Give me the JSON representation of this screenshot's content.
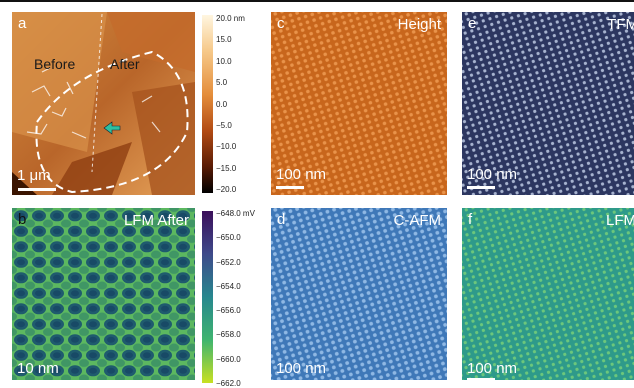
{
  "figure": {
    "panel_a": {
      "label": "a",
      "before_label": "Before",
      "after_label": "After",
      "scale": "1 μm",
      "colorbar_ticks": [
        "20.0 nm",
        "15.0",
        "10.0",
        "5.0",
        "0.0",
        "−5.0",
        "−10.0",
        "−15.0",
        "−20.0"
      ]
    },
    "panel_b": {
      "label": "b",
      "title": "LFM After",
      "scale": "10 nm",
      "colorbar_ticks": [
        "−648.0 mV",
        "−650.0",
        "−652.0",
        "−654.0",
        "−656.0",
        "−658.0",
        "−660.0",
        "−662.0"
      ]
    },
    "panel_c": {
      "label": "c",
      "title": "Height",
      "scale": "100 nm"
    },
    "panel_d": {
      "label": "d",
      "title": "C-AFM",
      "scale": "100 nm"
    },
    "panel_e": {
      "label": "e",
      "title": "TFM",
      "scale": "100 nm"
    },
    "panel_f": {
      "label": "f",
      "title": "LFM",
      "scale": "100 nm"
    }
  },
  "colors": {
    "afm_dark": "#3a1400",
    "afm_light": "#f6c98a",
    "height_base": "#c8661c",
    "cafm_base": "#3f78b8",
    "tfm_base": "#2c3660",
    "lfm_base": "#2e9a8a",
    "lfm_after_base": "#3a8a5a"
  }
}
